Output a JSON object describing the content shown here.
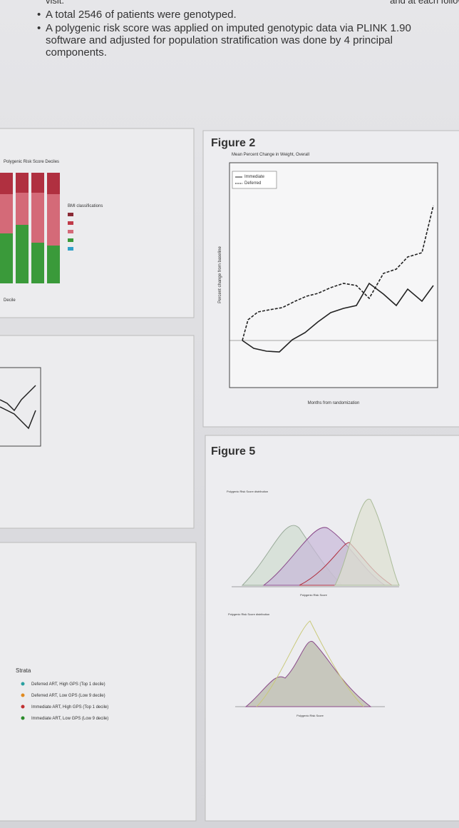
{
  "header": {
    "fragment_left": "visit.",
    "fragment_right": "and at each follow up",
    "bullets": [
      "A total 2546 of patients were genotyped.",
      "A polygenic risk score was applied on imputed genotypic data via PLINK 1.90 software and adjusted for population stratification was done by 4 principal components."
    ]
  },
  "panels": {
    "deciles": {
      "title": "Polygenic Risk Score Deciles",
      "legend_title": "BMI classifications",
      "x_label": "Decile"
    },
    "figure2": {
      "label": "Figure 2",
      "title": "Mean Percent Change in Weight, Overall",
      "legend": [
        "Immediate",
        "Deferred"
      ],
      "y_label": "Percent change from baseline",
      "x_label": "Months from randomization"
    },
    "strata": {
      "title": "Strata",
      "items": [
        "Deferred ART, High GPS (Top 1 decile)",
        "Deferred ART, Low GPS (Low 9 decile)",
        "Immediate ART, High GPS (Top 1 decile)",
        "Immediate ART, Low GPS (Low 9 decile)"
      ]
    },
    "figure5": {
      "label": "Figure 5",
      "plots": [
        {
          "title": "Polygenic Risk Score distribution",
          "x_label": "Polygenic Risk Score"
        },
        {
          "title": "Polygenic Risk Score distribution",
          "x_label": "Polygenic Risk Score"
        }
      ]
    }
  }
}
